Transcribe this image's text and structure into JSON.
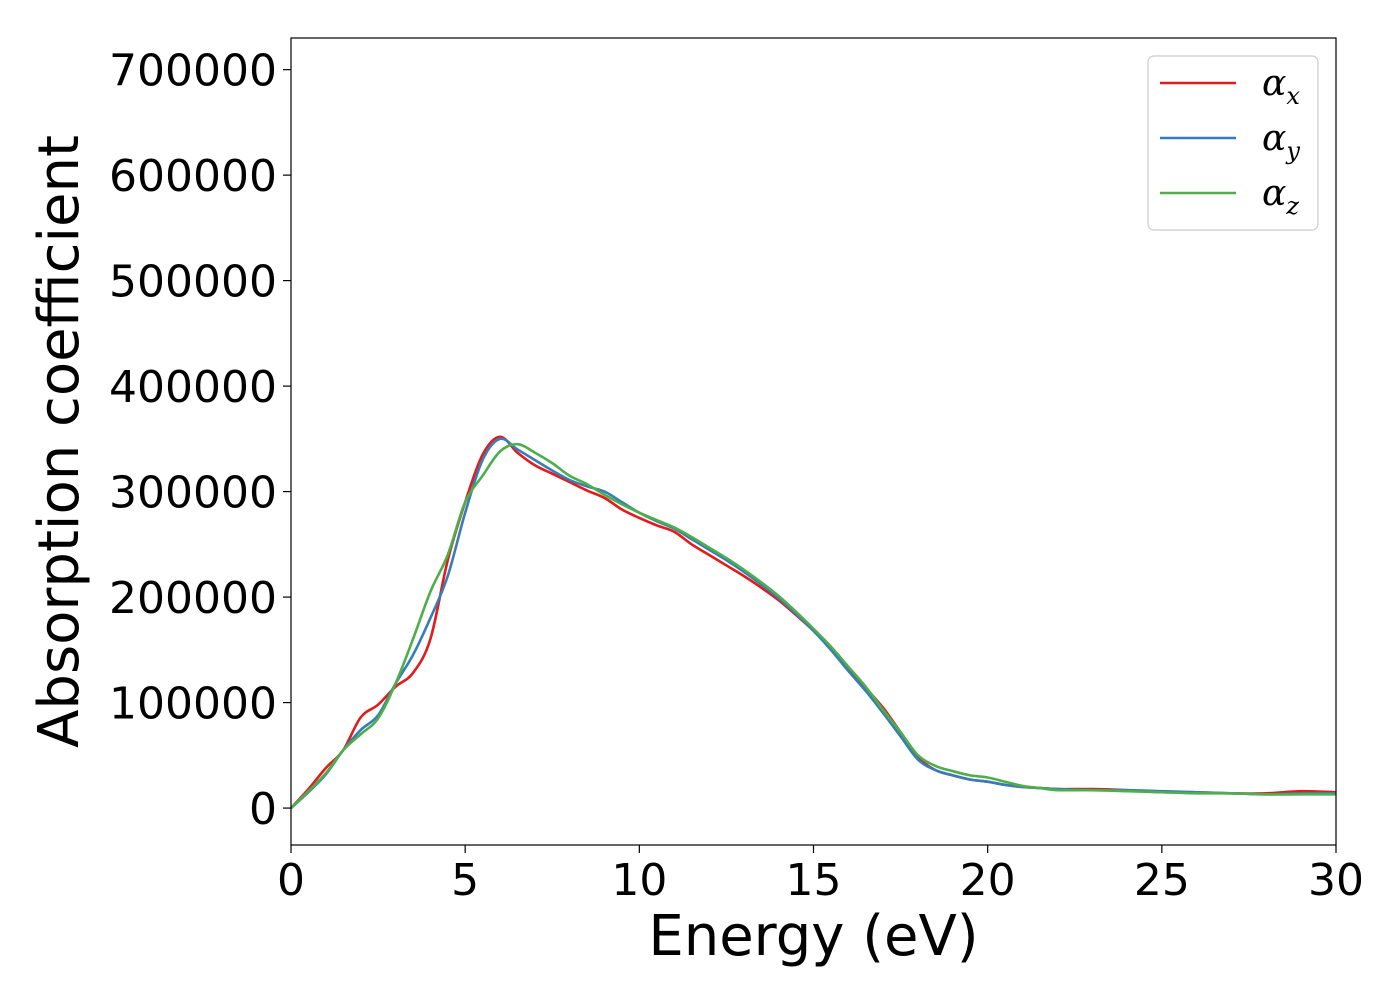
{
  "chart_data": {
    "type": "line",
    "title": "",
    "xlabel": "Energy (eV)",
    "ylabel": "Absorption coefficient",
    "xlim": [
      0,
      30
    ],
    "ylim": [
      -35000,
      730000
    ],
    "xticks": [
      0,
      5,
      10,
      15,
      20,
      25,
      30
    ],
    "yticks": [
      0,
      100000,
      200000,
      300000,
      400000,
      500000,
      600000,
      700000
    ],
    "grid": false,
    "legend_position": "top-right",
    "series": [
      {
        "name": "α",
        "subscript": "x",
        "color": "#e41a1c",
        "x": [
          0,
          0.5,
          1.0,
          1.5,
          2.0,
          2.5,
          3.0,
          3.5,
          4.0,
          4.5,
          5.0,
          5.5,
          6.0,
          6.5,
          7.0,
          7.5,
          8.0,
          8.5,
          9.0,
          9.5,
          10.0,
          10.5,
          11.0,
          11.5,
          12.0,
          12.5,
          13.0,
          13.5,
          14.0,
          14.5,
          15.0,
          15.5,
          16.0,
          16.5,
          17.0,
          17.5,
          18.0,
          18.5,
          19.0,
          19.5,
          20.0,
          20.5,
          21.0,
          21.5,
          22.0,
          23.0,
          24.0,
          25.0,
          26.0,
          27.0,
          28.0,
          29.0,
          30.0
        ],
        "y": [
          0,
          18000,
          38000,
          55000,
          86000,
          98000,
          115000,
          128000,
          160000,
          235000,
          290000,
          335000,
          352000,
          337000,
          325000,
          317000,
          309000,
          301000,
          294000,
          283000,
          275000,
          268000,
          262000,
          250000,
          240000,
          230000,
          220000,
          209000,
          197000,
          183000,
          168000,
          151000,
          133000,
          114000,
          95000,
          72000,
          48000,
          36000,
          31000,
          27000,
          25000,
          22000,
          20000,
          19000,
          18000,
          18000,
          17000,
          15000,
          15000,
          14000,
          14000,
          16000,
          15000
        ]
      },
      {
        "name": "α",
        "subscript": "y",
        "color": "#377eb8",
        "x": [
          0,
          0.5,
          1.0,
          1.5,
          2.0,
          2.5,
          3.0,
          3.5,
          4.0,
          4.5,
          5.0,
          5.5,
          6.0,
          6.5,
          7.0,
          7.5,
          8.0,
          8.5,
          9.0,
          9.5,
          10.0,
          10.5,
          11.0,
          11.5,
          12.0,
          12.5,
          13.0,
          13.5,
          14.0,
          14.5,
          15.0,
          15.5,
          16.0,
          16.5,
          17.0,
          17.5,
          18.0,
          18.5,
          19.0,
          19.5,
          20.0,
          20.5,
          21.0,
          21.5,
          22.0,
          23.0,
          24.0,
          25.0,
          26.0,
          27.0,
          28.0,
          29.0,
          30.0
        ],
        "y": [
          0,
          15000,
          32000,
          55000,
          74000,
          88000,
          118000,
          145000,
          180000,
          220000,
          280000,
          330000,
          350000,
          340000,
          330000,
          320000,
          311000,
          305000,
          300000,
          290000,
          280000,
          272000,
          265000,
          255000,
          245000,
          235000,
          224000,
          212000,
          199000,
          184000,
          168000,
          150000,
          130000,
          111000,
          90000,
          68000,
          46000,
          36000,
          31000,
          27000,
          25000,
          22000,
          20000,
          19000,
          18000,
          17000,
          17000,
          16000,
          15000,
          14000,
          13000,
          14000,
          14000
        ]
      },
      {
        "name": "α",
        "subscript": "z",
        "color": "#4daf4a",
        "x": [
          0,
          0.5,
          1.0,
          1.5,
          2.0,
          2.5,
          3.0,
          3.5,
          4.0,
          4.5,
          5.0,
          5.5,
          6.0,
          6.5,
          7.0,
          7.5,
          8.0,
          8.5,
          9.0,
          9.5,
          10.0,
          10.5,
          11.0,
          11.5,
          12.0,
          12.5,
          13.0,
          13.5,
          14.0,
          14.5,
          15.0,
          15.5,
          16.0,
          16.5,
          17.0,
          17.5,
          18.0,
          18.5,
          19.0,
          19.5,
          20.0,
          20.5,
          21.0,
          21.5,
          22.0,
          23.0,
          24.0,
          25.0,
          26.0,
          27.0,
          28.0,
          29.0,
          30.0
        ],
        "y": [
          0,
          16000,
          33000,
          55000,
          70000,
          85000,
          118000,
          160000,
          205000,
          240000,
          290000,
          315000,
          338000,
          345000,
          337000,
          327000,
          315000,
          307000,
          297000,
          288000,
          280000,
          273000,
          266000,
          257000,
          247000,
          237000,
          226000,
          214000,
          201000,
          186000,
          170000,
          153000,
          134000,
          115000,
          93000,
          72000,
          50000,
          40000,
          35000,
          31000,
          29000,
          25000,
          21000,
          19000,
          17000,
          17000,
          16000,
          15000,
          14000,
          14000,
          13000,
          13000,
          13000
        ]
      }
    ]
  }
}
